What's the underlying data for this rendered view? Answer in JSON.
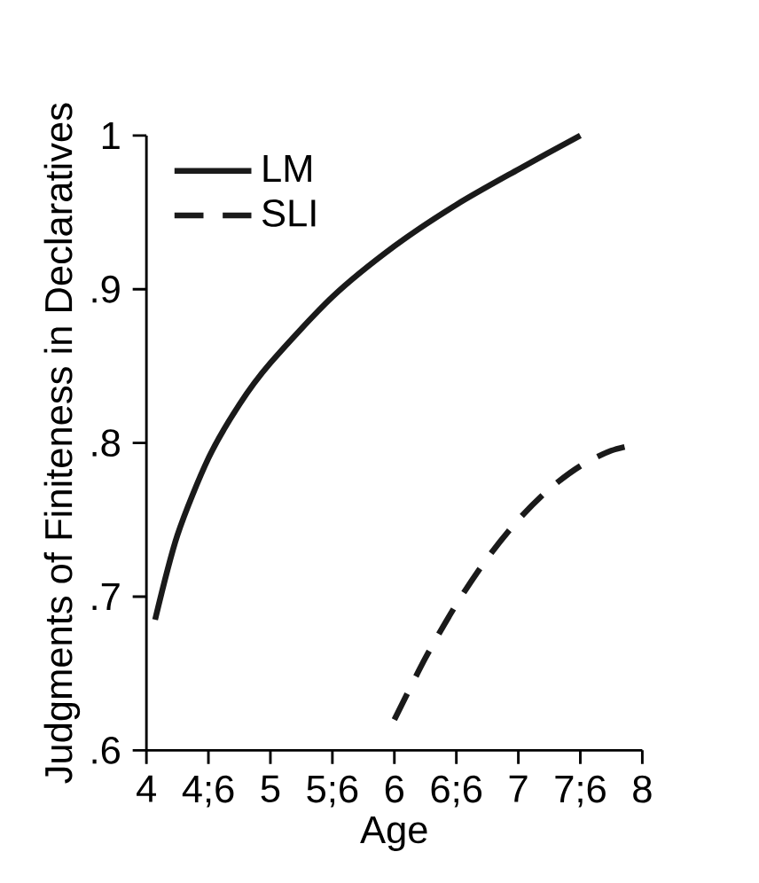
{
  "chart_data": {
    "type": "line",
    "xlabel": "Age",
    "ylabel": "Judgments of Finiteness in Declaratives",
    "xlim": [
      4,
      8
    ],
    "ylim": [
      0.6,
      1
    ],
    "xticks": [
      4,
      {
        "value": 4.5,
        "label": "4;6"
      },
      5,
      {
        "value": 5.5,
        "label": "5;6"
      },
      6,
      {
        "value": 6.5,
        "label": "6;6"
      },
      7,
      {
        "value": 7.5,
        "label": "7;6"
      },
      8
    ],
    "yticks": [
      {
        "value": 0.6,
        "label": ".6"
      },
      {
        "value": 0.7,
        "label": ".7"
      },
      {
        "value": 0.8,
        "label": ".8"
      },
      {
        "value": 0.9,
        "label": ".9"
      },
      1
    ],
    "legend": "top left",
    "grid": false,
    "marker": "none",
    "series": [
      {
        "name": "LM",
        "color": "#1a1a1a",
        "line_style": "solid",
        "x": [
          4.07,
          4.25,
          4.5,
          4.75,
          5,
          5.5,
          6,
          6.5,
          7,
          7.5
        ],
        "values": [
          0.685,
          0.74,
          0.79,
          0.825,
          0.852,
          0.895,
          0.928,
          0.955,
          0.978,
          1.0
        ]
      },
      {
        "name": "SLI",
        "color": "#1a1a1a",
        "line_style": "dashed",
        "x": [
          6,
          6.25,
          6.5,
          6.75,
          7,
          7.25,
          7.5,
          7.75,
          8
        ],
        "values": [
          0.62,
          0.66,
          0.695,
          0.725,
          0.75,
          0.77,
          0.785,
          0.795,
          0.8
        ]
      }
    ]
  }
}
